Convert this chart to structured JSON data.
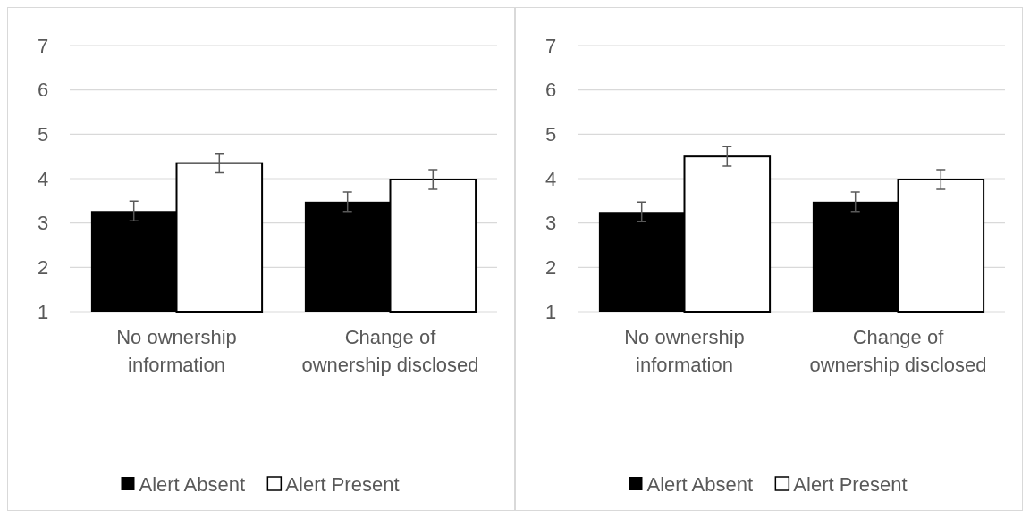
{
  "chart_data": [
    {
      "type": "bar",
      "categories": [
        "No ownership information",
        "Change of ownership disclosed"
      ],
      "series": [
        {
          "name": "Alert Absent",
          "color": "#000000",
          "values": [
            3.27,
            3.48
          ],
          "errors": [
            0.22,
            0.22
          ]
        },
        {
          "name": "Alert Present",
          "color": "#ffffff",
          "values": [
            4.35,
            3.98
          ],
          "errors": [
            0.22,
            0.22
          ]
        }
      ],
      "ylim": [
        1,
        7
      ],
      "yticks": [
        1,
        2,
        3,
        4,
        5,
        6,
        7
      ],
      "grid": "y",
      "legend": "bottom"
    },
    {
      "type": "bar",
      "categories": [
        "No ownership information",
        "Change of ownership disclosed"
      ],
      "series": [
        {
          "name": "Alert Absent",
          "color": "#000000",
          "values": [
            3.25,
            3.48
          ],
          "errors": [
            0.22,
            0.22
          ]
        },
        {
          "name": "Alert Present",
          "color": "#ffffff",
          "values": [
            4.5,
            3.98
          ],
          "errors": [
            0.22,
            0.22
          ]
        }
      ],
      "ylim": [
        1,
        7
      ],
      "yticks": [
        1,
        2,
        3,
        4,
        5,
        6,
        7
      ],
      "grid": "y",
      "legend": "bottom"
    }
  ]
}
